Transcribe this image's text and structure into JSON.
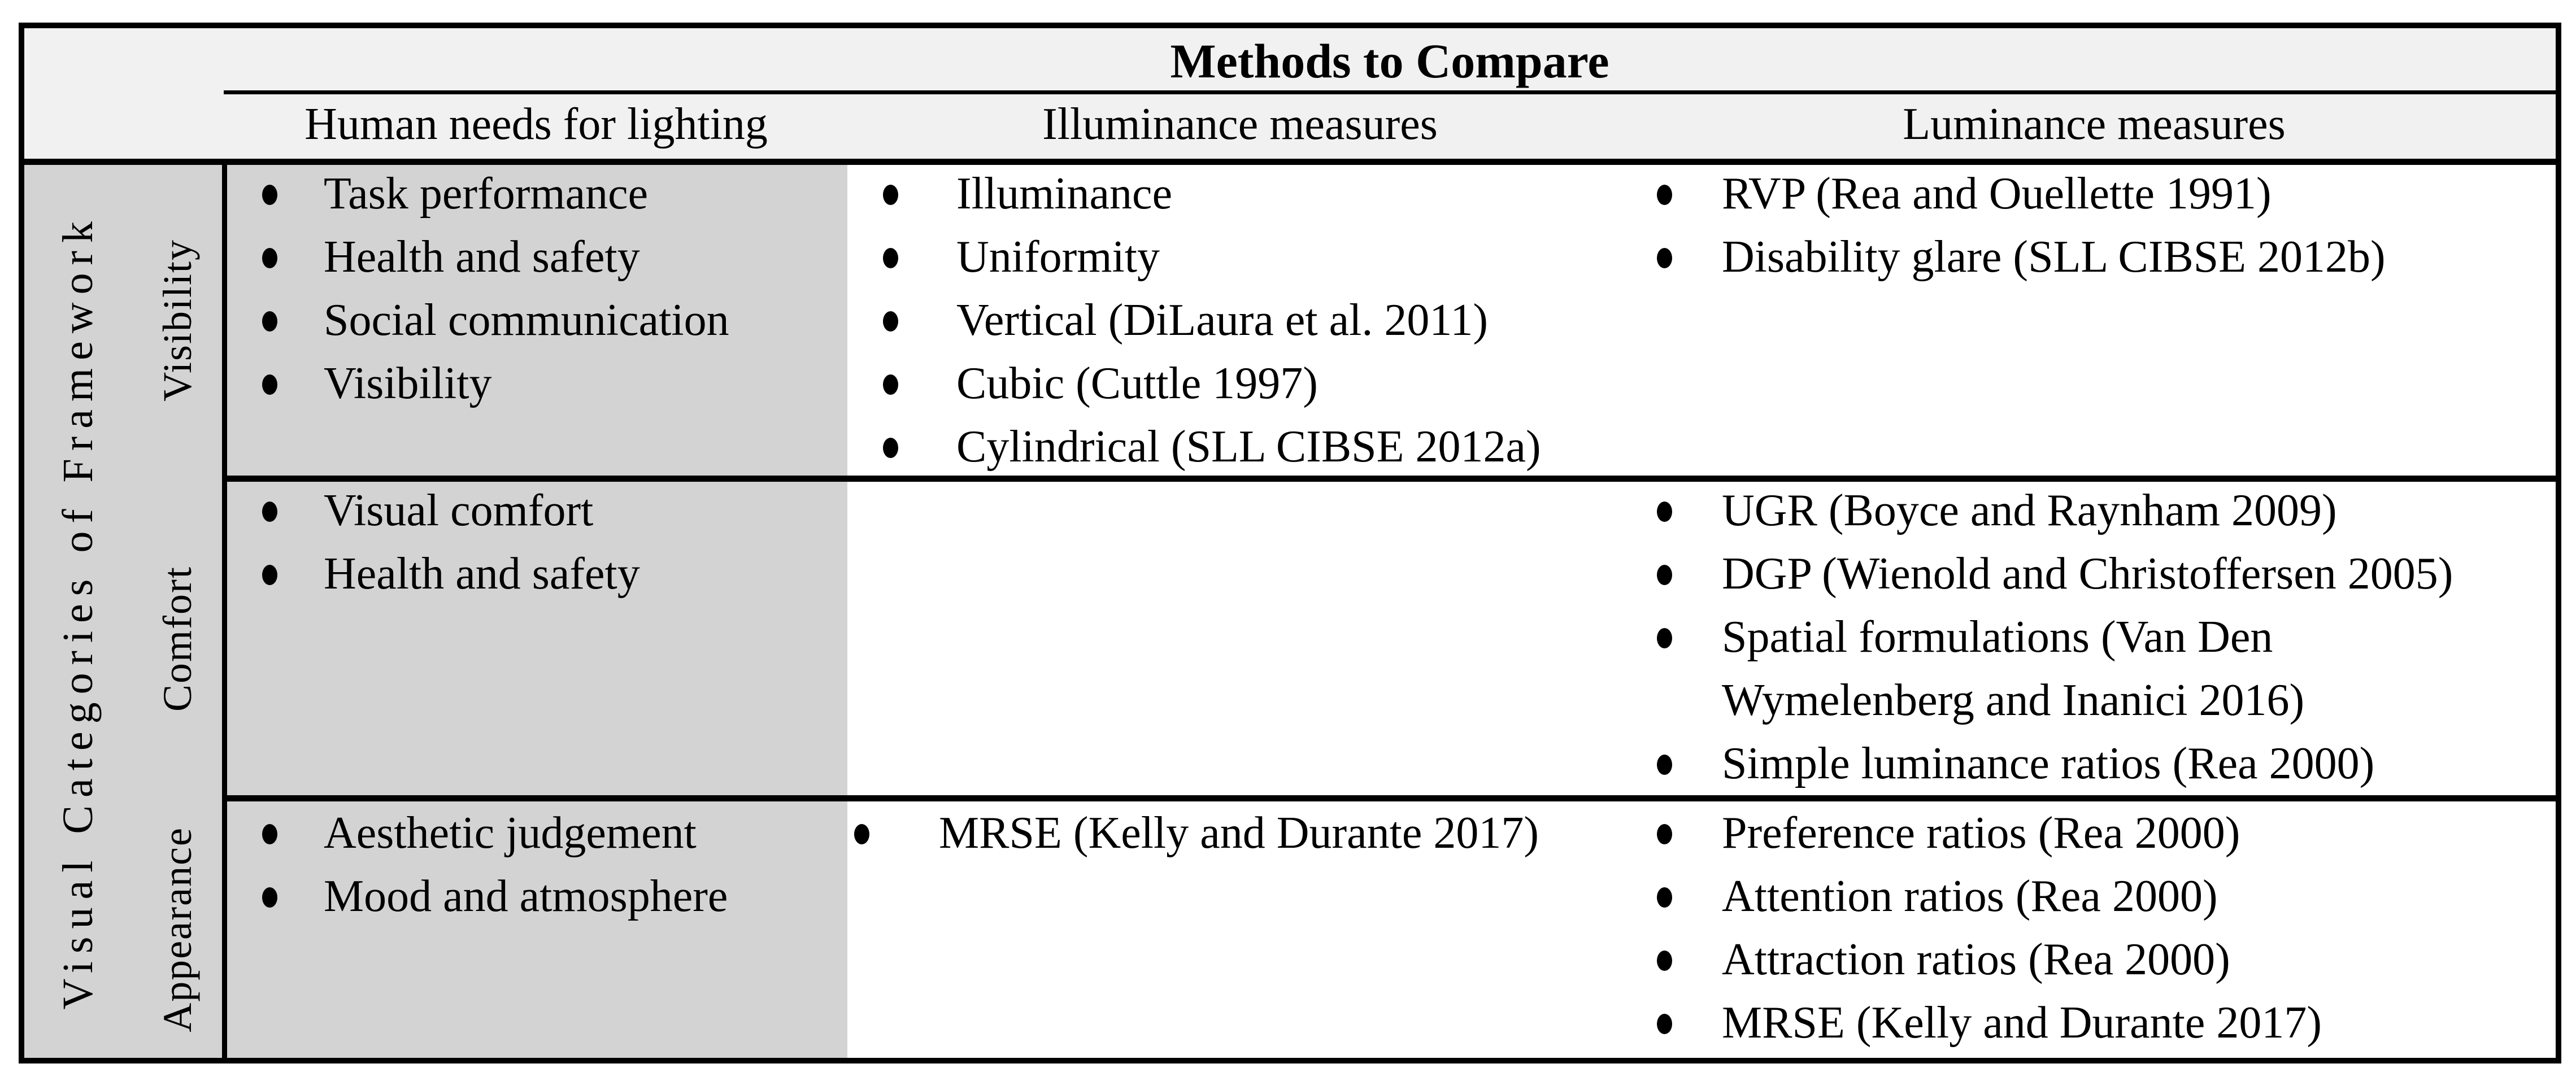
{
  "table": {
    "title": "Methods to Compare",
    "side_label": "Visual Categories of Framework",
    "columns": [
      "Human needs for lighting",
      "Illuminance measures",
      "Luminance measures"
    ],
    "rows": [
      {
        "label": "Visibility",
        "human_needs": [
          "Task performance",
          "Health and safety",
          "Social communication",
          "Visibility"
        ],
        "illuminance": [
          "Illuminance",
          "Uniformity",
          "Vertical (DiLaura et al. 2011)",
          "Cubic (Cuttle 1997)",
          "Cylindrical (SLL CIBSE 2012a)"
        ],
        "luminance": [
          "RVP (Rea and Ouellette 1991)",
          "Disability glare (SLL CIBSE 2012b)"
        ]
      },
      {
        "label": "Comfort",
        "human_needs": [
          "Visual comfort",
          "Health and safety"
        ],
        "illuminance": [],
        "luminance": [
          "UGR (Boyce and Raynham 2009)",
          "DGP (Wienold and Christoffersen 2005)",
          "Spatial formulations (Van Den\nWymelenberg and Inanici 2016)",
          "Simple luminance ratios (Rea 2000)"
        ]
      },
      {
        "label": "Appearance",
        "human_needs": [
          "Aesthetic judgement",
          "Mood and atmosphere"
        ],
        "illuminance": [
          "MRSE (Kelly and Durante 2017)"
        ],
        "luminance": [
          "Preference ratios (Rea 2000)",
          "Attention ratios (Rea 2000)",
          "Attraction ratios (Rea 2000)",
          "MRSE (Kelly and Durante 2017)"
        ]
      }
    ],
    "colors": {
      "header_bg": "#f1f1f1",
      "shaded_cell_bg": "#d3d3d3",
      "cell_bg": "#ffffff",
      "border": "#000000"
    }
  }
}
